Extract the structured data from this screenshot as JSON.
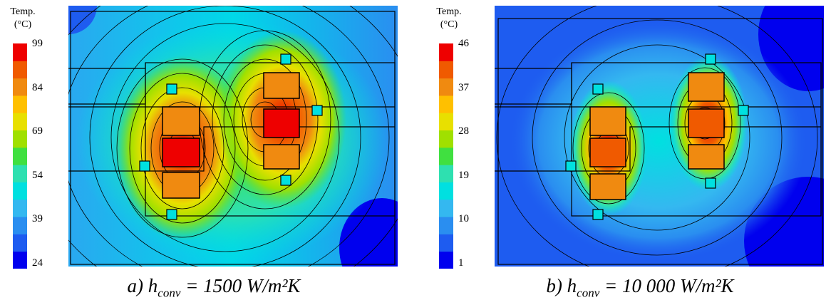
{
  "colormap": [
    "#0000ee",
    "#1e5cf0",
    "#2a8ef0",
    "#34b8f0",
    "#00e0e0",
    "#2ee0b0",
    "#40e040",
    "#a0e000",
    "#e8e000",
    "#ffc000",
    "#f08a10",
    "#f05a00",
    "#ee0000"
  ],
  "contour_color": "#000000",
  "panels": [
    {
      "colorbar_title": [
        "Temp.",
        "(°C)"
      ],
      "ticks": [
        "99",
        "84",
        "69",
        "54",
        "39",
        "24"
      ],
      "caption": {
        "prefix": "a) h",
        "subscript": "conv",
        "suffix": " = 1500 W/m²K"
      },
      "max_temp_c": 99,
      "min_temp_c": 24
    },
    {
      "colorbar_title": [
        "Temp.",
        "(°C)"
      ],
      "ticks": [
        "46",
        "37",
        "28",
        "19",
        "10",
        "1"
      ],
      "caption": {
        "prefix": "b) h",
        "subscript": "conv",
        "suffix": " = 10 000 W/m²K"
      },
      "max_temp_c": 46,
      "min_temp_c": 1
    }
  ]
}
